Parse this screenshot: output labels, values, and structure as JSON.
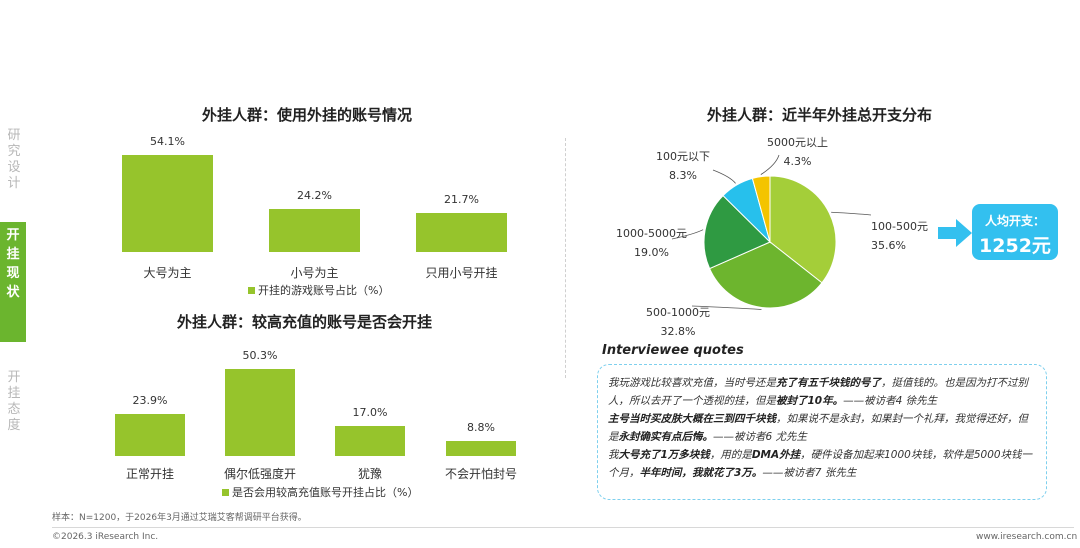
{
  "nav": {
    "items": [
      {
        "label": "研究设计",
        "active": false
      },
      {
        "label": "开挂现状",
        "active": true
      },
      {
        "label": "开挂态度",
        "active": false
      }
    ]
  },
  "chart1": {
    "title": "外挂人群：使用外挂的账号情况",
    "legend": "开挂的游戏账号占比（%）"
  },
  "chart2": {
    "title": "外挂人群：较高充值的账号是否会开挂",
    "legend": "是否会用较高充值账号开挂占比（%）"
  },
  "chart3": {
    "title": "外挂人群：近半年外挂总开支分布",
    "callout_label": "人均开支：",
    "callout_value": "1252元"
  },
  "chart_data": [
    {
      "type": "bar",
      "title": "外挂人群：使用外挂的账号情况",
      "categories": [
        "大号为主",
        "小号为主",
        "只用小号开挂"
      ],
      "values": [
        54.1,
        24.2,
        21.7
      ],
      "value_labels": [
        "54.1%",
        "24.2%",
        "21.7%"
      ],
      "legend": "开挂的游戏账号占比（%）",
      "ylim": [
        0,
        60
      ],
      "color": "#96c42c"
    },
    {
      "type": "bar",
      "title": "外挂人群：较高充值的账号是否会开挂",
      "categories": [
        "正常开挂",
        "偶尔低强度开",
        "犹豫",
        "不会开怕封号"
      ],
      "values": [
        23.9,
        50.3,
        17.0,
        8.8
      ],
      "value_labels": [
        "23.9%",
        "50.3%",
        "17.0%",
        "8.8%"
      ],
      "legend": "是否会用较高充值账号开挂占比（%）",
      "ylim": [
        0,
        55
      ],
      "color": "#96c42c"
    },
    {
      "type": "pie",
      "title": "外挂人群：近半年外挂总开支分布",
      "categories": [
        "100-500元",
        "500-1000元",
        "1000-5000元",
        "100元以下",
        "5000元以上"
      ],
      "values": [
        35.6,
        32.8,
        19.0,
        8.3,
        4.3
      ],
      "value_labels": [
        "35.6%",
        "32.8%",
        "19.0%",
        "8.3%",
        "4.3%"
      ],
      "colors": [
        "#a4ce39",
        "#6db52e",
        "#2f9a42",
        "#27c0ec",
        "#f4c400"
      ]
    }
  ],
  "quotes": {
    "title": "Interviewee quotes",
    "q1_pre": "我玩游戏比较喜欢充值，当时号还是",
    "q1_b1": "充了有五千块钱的号了",
    "q1_mid": "，挺值钱的。也是因为打不过别人，所以去开了一个透视的挂，但是",
    "q1_b2": "被封了10年。",
    "q1_post": "——被访者4 徐先生",
    "q2_b1": "主号当时买皮肤大概在三到四千块钱",
    "q2_mid": "，如果说不是永封，如果封一个礼拜，我觉得还好，但是",
    "q2_b2": "永封确实有点后悔。",
    "q2_post": "——被访者6 尤先生",
    "q3_pre": "我",
    "q3_b1": "大号充了1万多块钱",
    "q3_mid1": "，用的是",
    "q3_b2": "DMA外挂",
    "q3_mid2": "，硬件设备加起来1000块钱，软件是5000块钱一个月，",
    "q3_b3": "半年时间，我就花了3万。",
    "q3_post": "——被访者7 张先生"
  },
  "footer": {
    "note": "样本：N=1200，于2026年3月通过艾瑞艾客帮调研平台获得。",
    "copyright": "©2026.3 iResearch Inc.",
    "website": "www.iresearch.com.cn"
  }
}
